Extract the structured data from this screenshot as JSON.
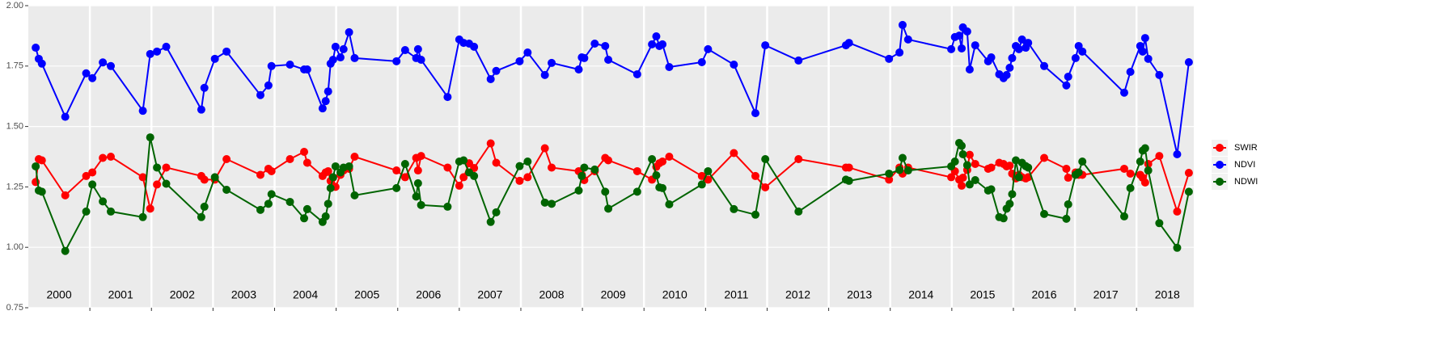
{
  "chart_data": {
    "type": "line",
    "x": [
      2000.12,
      2000.17,
      2000.22,
      2000.6,
      2000.94,
      2001.04,
      2001.21,
      2001.34,
      2001.86,
      2001.98,
      2002.09,
      2002.24,
      2002.81,
      2002.86,
      2003.03,
      2003.22,
      2003.77,
      2003.9,
      2003.95,
      2004.25,
      2004.48,
      2004.53,
      2004.78,
      2004.83,
      2004.87,
      2004.91,
      2004.95,
      2004.99,
      2005.07,
      2005.12,
      2005.21,
      2005.3,
      2005.98,
      2006.12,
      2006.3,
      2006.33,
      2006.38,
      2006.81,
      2007.0,
      2007.07,
      2007.16,
      2007.24,
      2007.51,
      2007.6,
      2007.98,
      2008.11,
      2008.39,
      2008.5,
      2008.94,
      2008.99,
      2009.03,
      2009.2,
      2009.37,
      2009.42,
      2009.89,
      2010.13,
      2010.2,
      2010.25,
      2010.3,
      2010.41,
      2010.94,
      2011.04,
      2011.46,
      2011.81,
      2011.97,
      2012.51,
      2013.28,
      2013.33,
      2013.98,
      2014.15,
      2014.2,
      2014.29,
      2014.99,
      2015.05,
      2015.12,
      2015.16,
      2015.18,
      2015.25,
      2015.29,
      2015.38,
      2015.59,
      2015.64,
      2015.77,
      2015.84,
      2015.89,
      2015.94,
      2015.98,
      2016.04,
      2016.09,
      2016.14,
      2016.2,
      2016.24,
      2016.5,
      2016.86,
      2016.89,
      2017.01,
      2017.06,
      2017.12,
      2017.8,
      2017.9,
      2018.06,
      2018.1,
      2018.14,
      2018.19,
      2018.37,
      2018.66,
      2018.85
    ],
    "series": [
      {
        "name": "SWIR",
        "color": "#ff0000",
        "values": [
          1.27,
          1.365,
          1.36,
          1.215,
          1.295,
          1.31,
          1.37,
          1.375,
          1.29,
          1.16,
          1.26,
          1.33,
          1.295,
          1.28,
          1.28,
          1.365,
          1.3,
          1.325,
          1.315,
          1.365,
          1.395,
          1.35,
          1.295,
          1.31,
          1.315,
          1.275,
          1.288,
          1.25,
          1.3,
          1.318,
          1.325,
          1.375,
          1.318,
          1.29,
          1.37,
          1.318,
          1.378,
          1.33,
          1.255,
          1.29,
          1.348,
          1.328,
          1.43,
          1.35,
          1.275,
          1.29,
          1.41,
          1.33,
          1.315,
          1.3,
          1.278,
          1.315,
          1.37,
          1.36,
          1.315,
          1.28,
          1.333,
          1.348,
          1.355,
          1.375,
          1.295,
          1.28,
          1.39,
          1.295,
          1.248,
          1.365,
          1.33,
          1.33,
          1.28,
          1.33,
          1.305,
          1.33,
          1.29,
          1.315,
          1.28,
          1.255,
          1.288,
          1.32,
          1.383,
          1.345,
          1.325,
          1.33,
          1.35,
          1.345,
          1.335,
          1.338,
          1.305,
          1.285,
          1.3,
          1.29,
          1.285,
          1.29,
          1.37,
          1.325,
          1.288,
          1.31,
          1.3,
          1.3,
          1.325,
          1.305,
          1.3,
          1.288,
          1.268,
          1.345,
          1.378,
          1.148,
          1.308
        ]
      },
      {
        "name": "NDVI",
        "color": "#0000ff",
        "values": [
          1.826,
          1.78,
          1.76,
          1.54,
          1.72,
          1.7,
          1.765,
          1.75,
          1.565,
          1.8,
          1.81,
          1.83,
          1.57,
          1.66,
          1.78,
          1.81,
          1.63,
          1.67,
          1.75,
          1.756,
          1.736,
          1.736,
          1.575,
          1.605,
          1.645,
          1.76,
          1.776,
          1.83,
          1.786,
          1.82,
          1.89,
          1.783,
          1.77,
          1.816,
          1.783,
          1.82,
          1.776,
          1.622,
          1.86,
          1.846,
          1.843,
          1.83,
          1.696,
          1.73,
          1.77,
          1.806,
          1.713,
          1.763,
          1.736,
          1.786,
          1.783,
          1.843,
          1.833,
          1.776,
          1.716,
          1.84,
          1.873,
          1.833,
          1.84,
          1.746,
          1.766,
          1.82,
          1.756,
          1.555,
          1.836,
          1.773,
          1.836,
          1.846,
          1.78,
          1.806,
          1.92,
          1.86,
          1.82,
          1.87,
          1.876,
          1.823,
          1.91,
          1.893,
          1.736,
          1.836,
          1.77,
          1.786,
          1.716,
          1.7,
          1.713,
          1.743,
          1.783,
          1.833,
          1.82,
          1.86,
          1.826,
          1.846,
          1.75,
          1.67,
          1.706,
          1.783,
          1.833,
          1.81,
          1.64,
          1.726,
          1.833,
          1.81,
          1.866,
          1.78,
          1.713,
          1.385,
          1.766
        ]
      },
      {
        "name": "NDWI",
        "color": "#006400",
        "values": [
          1.335,
          1.235,
          1.23,
          0.985,
          1.148,
          1.26,
          1.19,
          1.148,
          1.125,
          1.455,
          1.33,
          1.263,
          1.125,
          1.168,
          1.29,
          1.238,
          1.155,
          1.18,
          1.22,
          1.188,
          1.12,
          1.158,
          1.105,
          1.128,
          1.18,
          1.245,
          1.29,
          1.335,
          1.31,
          1.33,
          1.335,
          1.215,
          1.245,
          1.345,
          1.21,
          1.265,
          1.175,
          1.168,
          1.355,
          1.36,
          1.31,
          1.295,
          1.105,
          1.145,
          1.336,
          1.355,
          1.185,
          1.18,
          1.235,
          1.295,
          1.33,
          1.322,
          1.23,
          1.16,
          1.23,
          1.365,
          1.298,
          1.248,
          1.245,
          1.178,
          1.26,
          1.315,
          1.158,
          1.135,
          1.365,
          1.148,
          1.28,
          1.275,
          1.305,
          1.32,
          1.37,
          1.318,
          1.335,
          1.355,
          1.432,
          1.42,
          1.385,
          1.34,
          1.26,
          1.278,
          1.235,
          1.24,
          1.125,
          1.12,
          1.16,
          1.18,
          1.22,
          1.36,
          1.29,
          1.35,
          1.336,
          1.33,
          1.138,
          1.118,
          1.178,
          1.3,
          1.31,
          1.355,
          1.128,
          1.245,
          1.355,
          1.4,
          1.41,
          1.318,
          1.1,
          0.998,
          1.23
        ]
      }
    ],
    "xlim": [
      2000,
      2018.93
    ],
    "xticks": [
      2001,
      2002,
      2003,
      2004,
      2005,
      2006,
      2007,
      2008,
      2009,
      2010,
      2011,
      2012,
      2013,
      2014,
      2015,
      2016,
      2017,
      2018
    ],
    "year_labels": [
      {
        "value": 2000.5,
        "label": "2000"
      },
      {
        "value": 2001.5,
        "label": "2001"
      },
      {
        "value": 2002.5,
        "label": "2002"
      },
      {
        "value": 2003.5,
        "label": "2003"
      },
      {
        "value": 2004.5,
        "label": "2004"
      },
      {
        "value": 2005.5,
        "label": "2005"
      },
      {
        "value": 2006.5,
        "label": "2006"
      },
      {
        "value": 2007.5,
        "label": "2007"
      },
      {
        "value": 2008.5,
        "label": "2008"
      },
      {
        "value": 2009.5,
        "label": "2009"
      },
      {
        "value": 2010.5,
        "label": "2010"
      },
      {
        "value": 2011.5,
        "label": "2011"
      },
      {
        "value": 2012.5,
        "label": "2012"
      },
      {
        "value": 2013.5,
        "label": "2013"
      },
      {
        "value": 2014.5,
        "label": "2014"
      },
      {
        "value": 2015.5,
        "label": "2015"
      },
      {
        "value": 2016.5,
        "label": "2016"
      },
      {
        "value": 2017.5,
        "label": "2017"
      },
      {
        "value": 2018.5,
        "label": "2018"
      }
    ],
    "ylim": [
      0.75,
      2.0
    ],
    "yticks": [
      {
        "value": 0.75,
        "label": "0.75"
      },
      {
        "value": 1.0,
        "label": "1.00"
      },
      {
        "value": 1.25,
        "label": "1.25"
      },
      {
        "value": 1.5,
        "label": "1.50"
      },
      {
        "value": 1.75,
        "label": "1.75"
      },
      {
        "value": 2.0,
        "label": "2.00"
      }
    ],
    "grid": true,
    "legend": "right"
  }
}
